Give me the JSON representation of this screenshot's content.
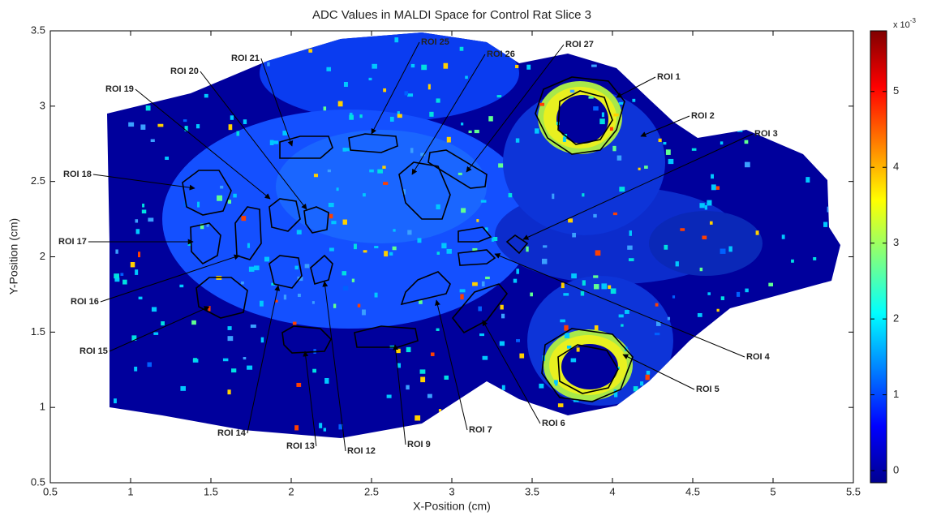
{
  "chart_data": {
    "type": "heatmap",
    "title": "ADC Values in MALDI Space for Control Rat Slice 3",
    "xlabel": "X-Position (cm)",
    "ylabel": "Y-Position (cm)",
    "xlim": [
      0.5,
      5.5
    ],
    "ylim": [
      0.5,
      3.5
    ],
    "xticks": [
      0.5,
      1,
      1.5,
      2,
      2.5,
      3,
      3.5,
      4,
      4.5,
      5,
      5.5
    ],
    "yticks": [
      0.5,
      1,
      1.5,
      2,
      2.5,
      3,
      3.5
    ],
    "colormap": "jet",
    "colorbar": {
      "clim": [
        -0.16,
        5.8
      ],
      "ticks": [
        0,
        1,
        2,
        3,
        4,
        5
      ],
      "scale_base": "x 10",
      "scale_exponent": "-3"
    },
    "annotations": [
      "ROI 1",
      "ROI 2",
      "ROI 3",
      "ROI 4",
      "ROI 5",
      "ROI 6",
      "ROI 7",
      "ROI 9",
      "ROI 12",
      "ROI 13",
      "ROI 14",
      "ROI 15",
      "ROI 16",
      "ROI 17",
      "ROI 18",
      "ROI 19",
      "ROI 20",
      "ROI 21",
      "ROI 25",
      "ROI 26",
      "ROI 27"
    ]
  }
}
